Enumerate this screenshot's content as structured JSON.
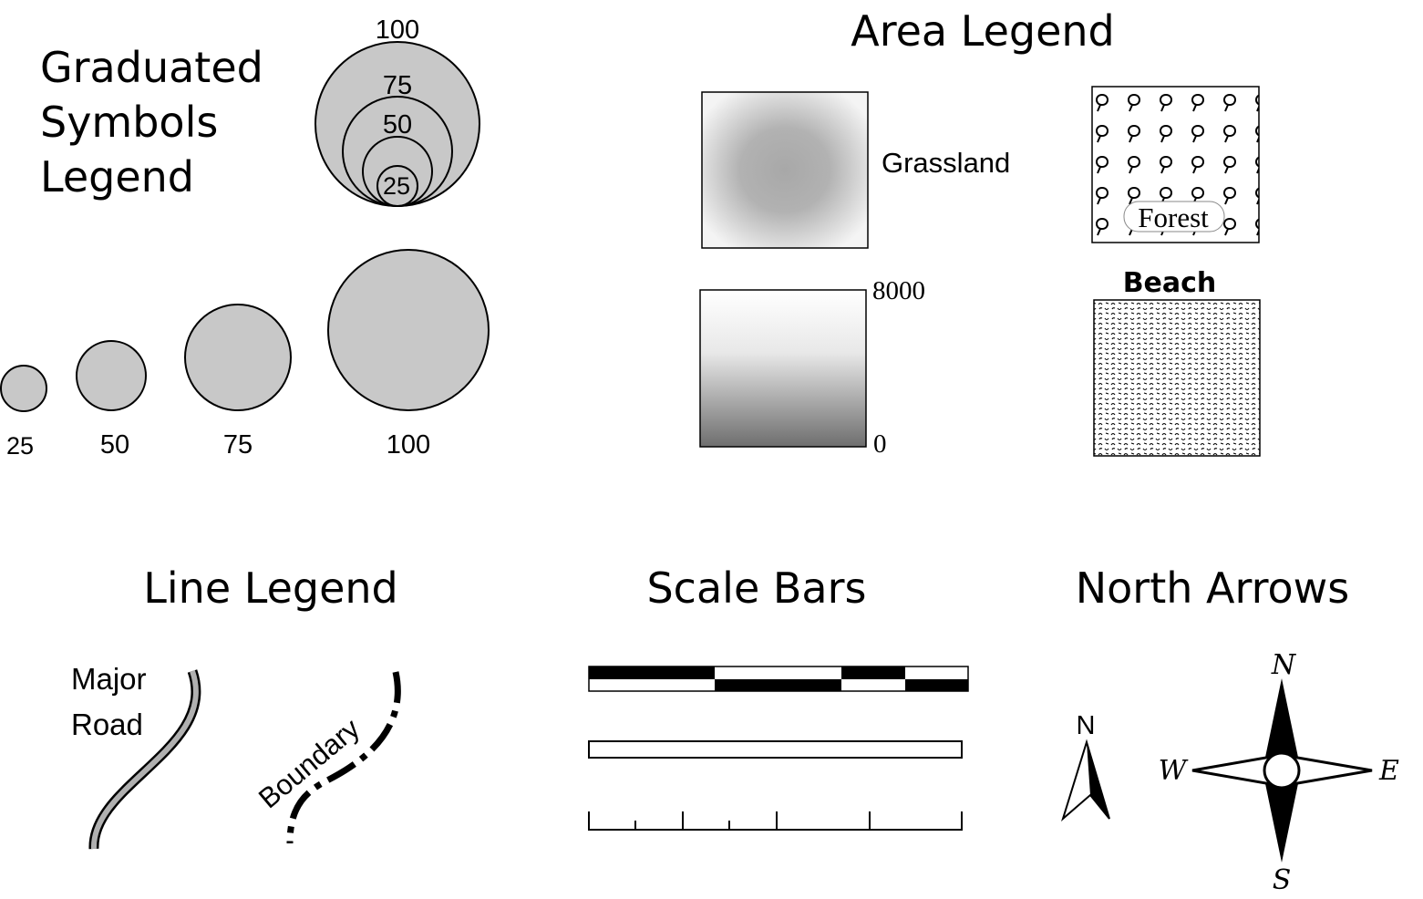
{
  "graduated_symbols": {
    "title_lines": [
      "Graduated",
      "Symbols",
      "Legend"
    ],
    "nested_labels": [
      "100",
      "75",
      "50",
      "25"
    ],
    "row_labels": [
      "25",
      "50",
      "75",
      "100"
    ]
  },
  "area_legend": {
    "title": "Area Legend",
    "grassland_label": "Grassland",
    "forest_label": "Forest",
    "beach_label": "Beach",
    "ramp_max_label": "8000",
    "ramp_min_label": "0"
  },
  "line_legend": {
    "title": "Line Legend",
    "major_road_lines": [
      "Major",
      "Road"
    ],
    "boundary_label": "Boundary"
  },
  "scale_bars": {
    "title": "Scale Bars"
  },
  "north_arrows": {
    "title": "North Arrows",
    "simple_label": "N",
    "compass": {
      "n": "N",
      "s": "S",
      "e": "E",
      "w": "W"
    }
  },
  "colors": {
    "symbol_fill": "#c8c8c8",
    "road_fill": "#b0b0b0",
    "ink": "#000000"
  }
}
